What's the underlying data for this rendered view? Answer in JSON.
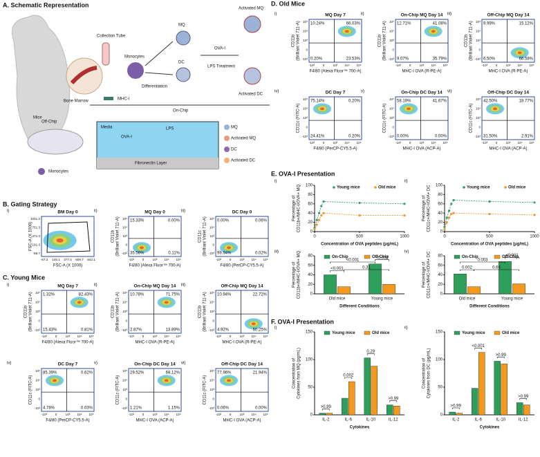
{
  "panel_a": {
    "title": "A. Schematic Representation",
    "mice": "Mice",
    "bone_marrow": "Bone Marrow",
    "collection_tube": "Collection Tube",
    "monocytes": "Monocytes",
    "differentiation": "Differentiation",
    "mq": "MQ",
    "dc": "DC",
    "ova": "OVA-I",
    "lps_treatment": "LPS Treatment",
    "activated_mq": "Activated MQ",
    "activated_dc": "Activated DC",
    "mhc": "MHC-I",
    "on_chip": "On-Chip",
    "off_chip": "Off-Chip",
    "dish_monocytes": "Monocytes",
    "media": "Media",
    "chip_ova": "OVA-I",
    "lps": "LPS",
    "fibronectin": "Fibronectin Layer",
    "legend": [
      "MQ",
      "Activated MQ",
      "DC",
      "Activated DC"
    ]
  },
  "flow_ticks": {
    "y": [
      "10⁵",
      "10⁴",
      "10³",
      "0",
      "-10³"
    ],
    "x": [
      "-10³",
      "0",
      "10³",
      "10⁴",
      "10⁵"
    ]
  },
  "panel_b": {
    "title": "B. Gating Strategy",
    "plots": [
      {
        "index": "i)",
        "title": "BM Day 0",
        "ylabel": [
          "FSC-A (X 1000)"
        ],
        "xlabel": "FSC-A (X 1000)",
        "yticks": [
          "1031.3",
          "751.3",
          "471.3",
          "191.3",
          "-88.7"
        ],
        "xticks": [
          "-87.3",
          "145.1",
          "377.4",
          "609.7",
          "842.1"
        ]
      },
      {
        "index": "ii)",
        "title": "MQ Day 0",
        "ylabel": [
          "CD11b",
          "(Brilliant Violet 711-A)"
        ],
        "xlabel": "F4/80 (Alexa Fluor™ 700-A)",
        "quadrants": [
          "15.33%",
          "0.00%",
          "35.56%",
          "0.11%"
        ]
      },
      {
        "index": "iii)",
        "title": "DC Day 0",
        "ylabel": [
          "CD11c",
          "(Brilliant Violet 711-A)"
        ],
        "xlabel": "F4/80 (PerCP-CY5.5-A)",
        "quadrants": [
          "0.00%",
          "0.06%",
          "99.94%",
          "0.02%"
        ]
      }
    ]
  },
  "panel_c": {
    "title": "C. Young Mice",
    "plots": [
      {
        "index": "i)",
        "title": "MQ Day 7",
        "ylabel": [
          "CD11b",
          "(Brilliant Violet 711-A)"
        ],
        "xlabel": "F4/80 (Alexa Fluor™ 700-A)",
        "quadrants": [
          "1.32%",
          "82.43%",
          "15.43%",
          "0.81%"
        ]
      },
      {
        "index": "ii)",
        "title": "On-Chip MQ Day 14",
        "ylabel": [
          "CD11b",
          "(Brilliant Violet 711-A)"
        ],
        "xlabel": "MHC-I OVA (R-PE-A)",
        "quadrants": [
          "10.78%",
          "71.75%",
          "2.87%",
          "13.89%"
        ]
      },
      {
        "index": "iii)",
        "title": "Off-Chip MQ Day 14",
        "ylabel": [
          "CD11b",
          "(Brilliant Violet 711-A)"
        ],
        "xlabel": "MHC-I OVA (R-PE-A)",
        "quadrants": [
          "10.94%",
          "22.72%",
          "4.92%",
          "60.25%"
        ]
      },
      {
        "index": "iv)",
        "title": "DC Day 7",
        "ylabel": [
          "CD11c (FITC-A)"
        ],
        "xlabel": "F4/80 (PerCP-CY5.5-A)",
        "quadrants": [
          "85.39%",
          "0.62%",
          "4.78%",
          "0.03%"
        ]
      },
      {
        "index": "v)",
        "title": "On-Chip DC Day 14",
        "ylabel": [
          "CD11c (FITC-A)"
        ],
        "xlabel": "MHC-I OVA (ACP-A)",
        "quadrants": [
          "29.52%",
          "68.12%",
          "1.21%",
          "1.15%"
        ]
      },
      {
        "index": "vi)",
        "title": "Off-Chip DC Day 14",
        "ylabel": [
          "CD11c (FITC-A)"
        ],
        "xlabel": "MHC-I OVA (ACP-A)",
        "quadrants": [
          "77.96%",
          "21.94%",
          "0.06%",
          "0.00%"
        ]
      }
    ]
  },
  "panel_d": {
    "title": "D. Old Mice",
    "plots": [
      {
        "index": "i)",
        "title": "MQ Day 7",
        "ylabel": [
          "CD11b",
          "(Brilliant Violet 711-A)"
        ],
        "xlabel": "F4/80 (Alexa Fluor™ 700-A)",
        "quadrants": [
          "10.24%",
          "66.03%",
          "0.20%",
          "23.53%"
        ]
      },
      {
        "index": "ii)",
        "title": "On-Chip MQ Day 14",
        "ylabel": [
          "CD11b",
          "(Brilliant Violet 711-A)"
        ],
        "xlabel": "MHC-I OVA (R-PE-A)",
        "quadrants": [
          "12.71%",
          "41.08%",
          "9.07%",
          "35.79%"
        ]
      },
      {
        "index": "iii)",
        "title": "Off-Chip MQ Day 14",
        "ylabel": [
          "CD11b",
          "(Brilliant Violet 711-A)"
        ],
        "xlabel": "MHC-I OVA (R-PE-A)",
        "quadrants": [
          "9.99%",
          "15.12%",
          "6.50%",
          "66.58%"
        ]
      },
      {
        "index": "iv)",
        "title": "DC Day 7",
        "ylabel": [
          "CD11c (FITC-A)"
        ],
        "xlabel": "F4/80 (PerCP-CY5.5-A)",
        "quadrants": [
          "75.14%",
          "0.20%",
          "24.41%",
          "0.20%"
        ]
      },
      {
        "index": "v)",
        "title": "On-Chip DC Day 14",
        "ylabel": [
          "CD11c (FITC-A)"
        ],
        "xlabel": "MHC-I OVA (ACP-A)",
        "quadrants": [
          "58.19%",
          "41.67%",
          "0.00%",
          "0.00%"
        ]
      },
      {
        "index": "vi)",
        "title": "Off-Chip DC Day 14",
        "ylabel": [
          "CD11c (FITC-A)"
        ],
        "xlabel": "MHC-I OVA (ACP-A)",
        "quadrants": [
          "42.50%",
          "18.77%",
          "31.50%",
          "2.91%"
        ]
      }
    ]
  },
  "panel_e": {
    "title": "E. OVA-I Presentation"
  },
  "panel_f": {
    "title": "F. OVA-I Presentation"
  },
  "chart_data": [
    {
      "type": "line",
      "panel_label": "i)",
      "ylabel": [
        "Percentage of",
        "CD11b+/MHC-I/OVA+ MQ"
      ],
      "xlabel": "Concentration of OVA peptides (μg/mL)",
      "x": [
        0,
        25,
        50,
        75,
        100,
        500,
        1000
      ],
      "xlim": [
        0,
        1000
      ],
      "xticks": [
        0,
        500,
        1000
      ],
      "ylim": [
        0,
        100
      ],
      "yticks": [
        0,
        20,
        40,
        60,
        80,
        100
      ],
      "series": [
        {
          "name": "Young mice",
          "color": "#2f9e78",
          "values": [
            8,
            25,
            40,
            55,
            65,
            62,
            60
          ]
        },
        {
          "name": "Old mice",
          "color": "#f0932b",
          "values": [
            5,
            15,
            25,
            35,
            40,
            35,
            35
          ]
        }
      ]
    },
    {
      "type": "line",
      "panel_label": "ii)",
      "ylabel": [
        "Percentage of",
        "CD11c+/MHC-I/OVA+ DC"
      ],
      "xlabel": "Concentration of OVA peptides (μg/mL)",
      "x": [
        0,
        25,
        50,
        75,
        100,
        500,
        1000
      ],
      "xlim": [
        0,
        1000
      ],
      "xticks": [
        0,
        500,
        1000
      ],
      "ylim": [
        0,
        100
      ],
      "yticks": [
        0,
        20,
        40,
        60,
        80,
        100
      ],
      "series": [
        {
          "name": "Young mice",
          "color": "#2f9e78",
          "values": [
            10,
            30,
            45,
            60,
            68,
            65,
            63
          ]
        },
        {
          "name": "Old mice",
          "color": "#f0932b",
          "values": [
            5,
            20,
            30,
            38,
            40,
            38,
            36
          ]
        }
      ]
    },
    {
      "type": "bar",
      "panel_label": "iii)",
      "ylabel": [
        "Percentage of",
        "CD11b+/MHC-I/OVA+ MQ"
      ],
      "xlabel": "Different Conditions",
      "categories": [
        "Old mice",
        "Young mice"
      ],
      "ylim": [
        0,
        80
      ],
      "yticks": [
        0,
        20,
        40,
        60,
        80
      ],
      "series": [
        {
          "name": "On-Chip",
          "color": "#2e9e5b",
          "values": [
            40,
            63
          ]
        },
        {
          "name": "Off-Chip",
          "color": "#f39a1e",
          "values": [
            15,
            20
          ]
        }
      ],
      "annotations": [
        "<0.001",
        "<0.001",
        "<0.001",
        "0.31"
      ]
    },
    {
      "type": "bar",
      "panel_label": "iv)",
      "ylabel": [
        "Percentage of",
        "CD11c+/MHC-I/OVA+ DC"
      ],
      "xlabel": "Different Conditions",
      "categories": [
        "Old mice",
        "Young mice"
      ],
      "ylim": [
        0,
        80
      ],
      "yticks": [
        0,
        20,
        40,
        60,
        80
      ],
      "series": [
        {
          "name": "On-Chip",
          "color": "#2e9e5b",
          "values": [
            42,
            68
          ]
        },
        {
          "name": "Off-Chip",
          "color": "#f39a1e",
          "values": [
            15,
            21
          ]
        }
      ],
      "annotations": [
        "0.002",
        "<0.001",
        "0.003",
        "0.66"
      ]
    },
    {
      "type": "bar",
      "panel_label": "i)",
      "ylabel": [
        "Concentration of",
        "Cytokines from MQ (pg/mL)"
      ],
      "xlabel": "Cytokines",
      "categories": [
        "IL-2",
        "IL-6",
        "IL-10",
        "IL-12"
      ],
      "ylim": [
        0,
        150
      ],
      "yticks": [
        0,
        50,
        100,
        150
      ],
      "series": [
        {
          "name": "Young mice",
          "color": "#2e9e5b",
          "values": [
            3,
            30,
            103,
            18
          ]
        },
        {
          "name": "Old mice",
          "color": "#f39a1e",
          "values": [
            3,
            60,
            88,
            16
          ]
        }
      ],
      "annotations": [
        ">0.99",
        "0.002",
        "0.29",
        ">0.99"
      ]
    },
    {
      "type": "bar",
      "panel_label": "ii)",
      "ylabel": [
        "Concentration of",
        "Cytokines from DC (pg/mL)"
      ],
      "xlabel": "Cytokines",
      "categories": [
        "IL-2",
        "IL-6",
        "IL-10",
        "IL-12"
      ],
      "ylim": [
        0,
        150
      ],
      "yticks": [
        0,
        50,
        100,
        150
      ],
      "series": [
        {
          "name": "Young mice",
          "color": "#2e9e5b",
          "values": [
            5,
            48,
            97,
            22
          ]
        },
        {
          "name": "Old mice",
          "color": "#f39a1e",
          "values": [
            3,
            113,
            92,
            18
          ]
        }
      ],
      "annotations": [
        ">0.99",
        "<0.001",
        ">0.99",
        ">0.99"
      ]
    }
  ]
}
